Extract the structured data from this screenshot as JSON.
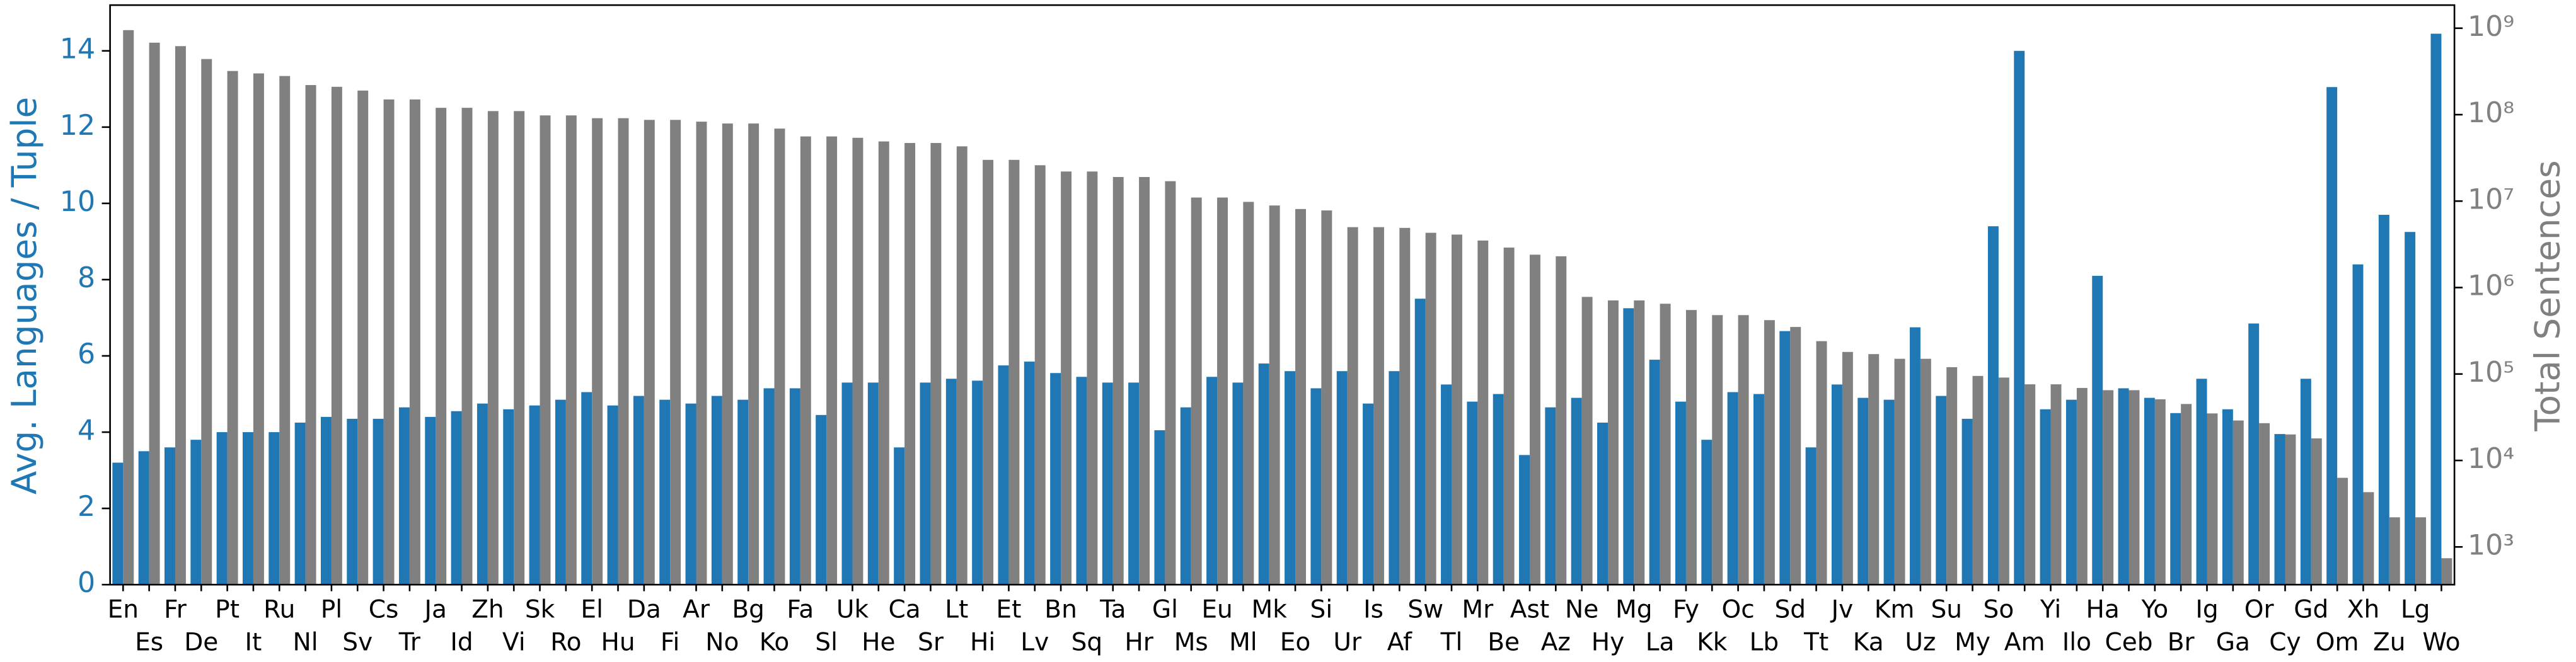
{
  "chart_data": {
    "type": "bar",
    "ylabel": "Avg. Languages / Tuple",
    "y2label": "Total Sentences",
    "categories": [
      "En",
      "Es",
      "Fr",
      "De",
      "Pt",
      "It",
      "Ru",
      "Nl",
      "Pl",
      "Sv",
      "Cs",
      "Tr",
      "Ja",
      "Id",
      "Zh",
      "Vi",
      "Sk",
      "Ro",
      "El",
      "Hu",
      "Da",
      "Fi",
      "Ar",
      "No",
      "Bg",
      "Ko",
      "Fa",
      "Sl",
      "Uk",
      "He",
      "Ca",
      "Sr",
      "Lt",
      "Hi",
      "Et",
      "Lv",
      "Bn",
      "Sq",
      "Ta",
      "Hr",
      "Gl",
      "Ms",
      "Eu",
      "Ml",
      "Mk",
      "Eo",
      "Si",
      "Ur",
      "Is",
      "Af",
      "Sw",
      "Tl",
      "Mr",
      "Be",
      "Ast",
      "Az",
      "Ne",
      "Hy",
      "Mg",
      "La",
      "Fy",
      "Kk",
      "Oc",
      "Lb",
      "Sd",
      "Tt",
      "Jv",
      "Ka",
      "Km",
      "Uz",
      "Su",
      "My",
      "So",
      "Am",
      "Yi",
      "Ilo",
      "Ha",
      "Ceb",
      "Yo",
      "Br",
      "Ig",
      "Ga",
      "Or",
      "Cy",
      "Gd",
      "Om",
      "Xh",
      "Zu",
      "Lg",
      "Wo"
    ],
    "series": [
      {
        "name": "Avg. Languages / Tuple",
        "color": "#1f77b4",
        "axis": "y",
        "values": [
          3.2,
          3.5,
          3.6,
          3.8,
          4.0,
          4.0,
          4.0,
          4.25,
          4.4,
          4.35,
          4.35,
          4.65,
          4.4,
          4.55,
          4.75,
          4.6,
          4.7,
          4.85,
          5.05,
          4.7,
          4.95,
          4.85,
          4.75,
          4.95,
          4.85,
          5.15,
          5.15,
          4.45,
          5.3,
          5.3,
          3.6,
          5.3,
          5.4,
          5.35,
          5.75,
          5.85,
          5.55,
          5.45,
          5.3,
          5.3,
          4.05,
          4.65,
          5.45,
          5.3,
          5.8,
          5.6,
          5.15,
          5.6,
          4.75,
          5.6,
          7.5,
          5.25,
          4.8,
          5.0,
          3.4,
          4.65,
          4.9,
          4.25,
          7.25,
          5.9,
          4.8,
          3.8,
          5.05,
          5.0,
          6.65,
          3.6,
          5.25,
          4.9,
          4.85,
          6.75,
          4.95,
          4.35,
          9.4,
          14.0,
          4.6,
          4.85,
          8.1,
          5.15,
          4.9,
          4.5,
          5.4,
          4.6,
          6.85,
          3.95,
          5.4,
          13.05,
          8.4,
          9.7,
          9.25,
          14.45
        ]
      },
      {
        "name": "Total Sentences",
        "color": "#808080",
        "axis": "y2",
        "values": [
          950000000,
          680000000,
          620000000,
          440000000,
          320000000,
          300000000,
          280000000,
          220000000,
          210000000,
          190000000,
          150000000,
          150000000,
          120000000,
          120000000,
          110000000,
          110000000,
          98000000,
          98000000,
          91000000,
          91000000,
          87000000,
          87000000,
          83000000,
          79000000,
          79000000,
          69000000,
          56000000,
          56000000,
          54000000,
          49000000,
          47000000,
          47000000,
          43000000,
          30000000,
          30000000,
          26000000,
          22000000,
          22000000,
          19000000,
          19000000,
          17000000,
          11000000,
          11000000,
          9800000,
          8900000,
          8100000,
          7800000,
          5000000,
          5000000,
          4900000,
          4300000,
          4100000,
          3500000,
          2900000,
          2400000,
          2300000,
          780000,
          710000,
          710000,
          650000,
          550000,
          480000,
          480000,
          420000,
          350000,
          240000,
          180000,
          170000,
          150000,
          150000,
          120000,
          95000,
          91000,
          76000,
          76000,
          69000,
          65000,
          65000,
          51000,
          45000,
          35000,
          29000,
          27000,
          20000,
          18000,
          6300,
          4300,
          2200,
          2200,
          740
        ]
      }
    ],
    "ylim": [
      0,
      15.2
    ],
    "yticks": [
      0,
      2,
      4,
      6,
      8,
      10,
      12,
      14
    ],
    "y2lim": [
      366,
      1850000000
    ],
    "y2log": true,
    "y2ticks": [
      {
        "value": 1000,
        "label": "10³"
      },
      {
        "value": 10000,
        "label": "10⁴"
      },
      {
        "value": 100000,
        "label": "10⁵"
      },
      {
        "value": 1000000,
        "label": "10⁶"
      },
      {
        "value": 10000000,
        "label": "10⁷"
      },
      {
        "value": 100000000,
        "label": "10⁸"
      },
      {
        "value": 1000000000,
        "label": "10⁹"
      }
    ]
  }
}
